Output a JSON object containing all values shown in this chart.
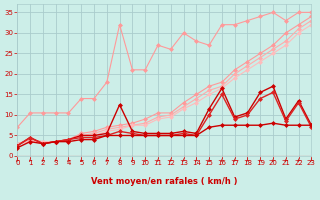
{
  "bg_color": "#cceee8",
  "grid_color": "#aacccc",
  "xlabel": "Vent moyen/en rafales ( km/h )",
  "xlabel_color": "#cc0000",
  "xlim": [
    0,
    23
  ],
  "ylim": [
    0,
    37
  ],
  "yticks": [
    0,
    5,
    10,
    15,
    20,
    25,
    30,
    35
  ],
  "xticks": [
    0,
    1,
    2,
    3,
    4,
    5,
    6,
    7,
    8,
    9,
    10,
    11,
    12,
    13,
    14,
    15,
    16,
    17,
    18,
    19,
    20,
    21,
    22,
    23
  ],
  "lines_light": [
    {
      "x": [
        0,
        1,
        2,
        3,
        4,
        5,
        6,
        7,
        8,
        9,
        10,
        11,
        12,
        13,
        14,
        15,
        16,
        17,
        18,
        19,
        20,
        21,
        22,
        23
      ],
      "y": [
        7,
        10.5,
        10.5,
        10.5,
        10.5,
        14,
        14,
        18,
        32,
        21,
        21,
        27,
        26,
        30,
        28,
        27,
        32,
        32,
        33,
        34,
        35,
        33,
        35,
        35
      ],
      "color": "#ff9999",
      "lw": 0.8
    },
    {
      "x": [
        0,
        1,
        2,
        3,
        4,
        5,
        6,
        7,
        8,
        9,
        10,
        11,
        12,
        13,
        14,
        15,
        16,
        17,
        18,
        19,
        20,
        21,
        22,
        23
      ],
      "y": [
        3,
        4,
        3.5,
        3.5,
        4,
        5.5,
        6,
        7,
        7.5,
        8,
        9,
        10.5,
        10.5,
        13,
        15,
        17,
        18,
        21,
        23,
        25,
        27,
        30,
        32,
        34
      ],
      "color": "#ff9999",
      "lw": 0.8
    },
    {
      "x": [
        0,
        1,
        2,
        3,
        4,
        5,
        6,
        7,
        8,
        9,
        10,
        11,
        12,
        13,
        14,
        15,
        16,
        17,
        18,
        19,
        20,
        21,
        22,
        23
      ],
      "y": [
        3,
        3.5,
        3.5,
        3.5,
        4,
        5,
        5.5,
        6.5,
        7,
        7.5,
        8,
        9.5,
        10,
        12,
        14,
        16,
        17,
        20,
        22,
        24,
        26,
        28,
        31,
        33
      ],
      "color": "#ffaaaa",
      "lw": 0.8
    },
    {
      "x": [
        0,
        1,
        2,
        3,
        4,
        5,
        6,
        7,
        8,
        9,
        10,
        11,
        12,
        13,
        14,
        15,
        16,
        17,
        18,
        19,
        20,
        21,
        22,
        23
      ],
      "y": [
        3,
        3.5,
        3.5,
        3.5,
        4,
        5,
        5,
        6,
        6.5,
        7.5,
        7.5,
        9,
        9.5,
        11.5,
        13,
        15,
        16.5,
        19,
        21,
        23,
        25,
        27,
        30,
        32
      ],
      "color": "#ffbbbb",
      "lw": 0.8
    }
  ],
  "lines_dark": [
    {
      "x": [
        0,
        1,
        2,
        3,
        4,
        5,
        6,
        7,
        8,
        9,
        10,
        11,
        12,
        13,
        14,
        15,
        16,
        17,
        18,
        19,
        20,
        21,
        22,
        23
      ],
      "y": [
        2.5,
        4.5,
        3,
        3.5,
        4,
        5,
        5,
        5.5,
        12.5,
        6,
        5.5,
        5.5,
        5.5,
        6,
        5.5,
        11.5,
        16.5,
        9.5,
        10.5,
        15.5,
        17,
        9,
        13.5,
        7.5
      ],
      "color": "#cc0000",
      "lw": 1.0
    },
    {
      "x": [
        0,
        1,
        2,
        3,
        4,
        5,
        6,
        7,
        8,
        9,
        10,
        11,
        12,
        13,
        14,
        15,
        16,
        17,
        18,
        19,
        20,
        21,
        22,
        23
      ],
      "y": [
        2.5,
        4.5,
        3,
        3.5,
        4,
        4.5,
        4.5,
        5,
        6,
        5.5,
        5,
        5,
        5,
        5.5,
        5,
        10,
        15,
        9,
        10,
        14,
        15.5,
        8.5,
        13,
        7
      ],
      "color": "#dd2222",
      "lw": 1.0
    },
    {
      "x": [
        0,
        1,
        2,
        3,
        4,
        5,
        6,
        7,
        8,
        9,
        10,
        11,
        12,
        13,
        14,
        15,
        16,
        17,
        18,
        19,
        20,
        21,
        22,
        23
      ],
      "y": [
        2,
        3.5,
        3,
        3.5,
        3.5,
        4,
        4,
        5,
        5,
        5,
        5,
        5,
        5,
        5,
        5,
        7,
        7.5,
        7.5,
        7.5,
        7.5,
        8,
        7.5,
        7.5,
        7.5
      ],
      "color": "#cc0000",
      "lw": 1.0
    }
  ],
  "marker_size": 2.5,
  "tick_fontsize": 5,
  "xlabel_fontsize": 6
}
